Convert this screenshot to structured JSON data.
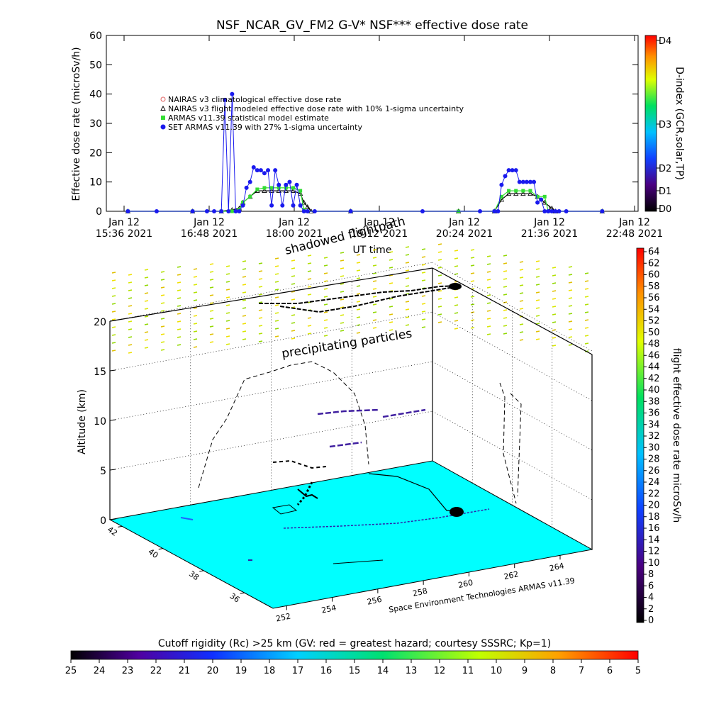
{
  "chart_data": [
    {
      "type": "line",
      "title": "NSF_NCAR_GV_FM2 G-V* NSF*** effective dose rate",
      "xlabel": "UT time",
      "ylabel": "Effective dose rate (microSv/h)",
      "ylim": [
        0,
        60
      ],
      "yticks": [
        0,
        10,
        20,
        30,
        40,
        50,
        60
      ],
      "xticks": [
        {
          "line1": "Jan 12",
          "line2": "15:36 2021"
        },
        {
          "line1": "Jan 12",
          "line2": "16:48 2021"
        },
        {
          "line1": "Jan 12",
          "line2": "18:00 2021"
        },
        {
          "line1": "Jan 12",
          "line2": "19:12 2021"
        },
        {
          "line1": "Jan 12",
          "line2": "20:24 2021"
        },
        {
          "line1": "Jan 12",
          "line2": "21:36 2021"
        },
        {
          "line1": "Jan 12",
          "line2": "22:48 2021"
        }
      ],
      "legend": [
        {
          "label": "NAIRAS v3 climatological effective dose rate",
          "color": "#e06060",
          "marker": "circle"
        },
        {
          "label": "NAIRAS v3 flight modeled effective dose rate with 10% 1-sigma uncertainty",
          "color": "#000000",
          "marker": "triangle"
        },
        {
          "label": "ARMAS v11.39 statistical model estimate",
          "color": "#33dd33",
          "marker": "square"
        },
        {
          "label": "SET ARMAS v11.39 with 27% 1-sigma uncertainty",
          "color": "#1a1aee",
          "marker": "dot"
        }
      ],
      "right_axis": {
        "label": "D-index (GCR,solar,TP)",
        "ticks": [
          "D0",
          "D1",
          "D2",
          "D3",
          "D4"
        ]
      },
      "series": [
        {
          "name": "SET ARMAS v11.39 with 27% 1-sigma uncertainty",
          "x": [
            15.9,
            16.3,
            16.8,
            17.0,
            17.1,
            17.2,
            17.25,
            17.3,
            17.35,
            17.4,
            17.45,
            17.5,
            17.55,
            17.6,
            17.65,
            17.7,
            17.75,
            17.8,
            17.85,
            17.9,
            17.95,
            18.0,
            18.05,
            18.1,
            18.15,
            18.2,
            18.25,
            18.3,
            18.35,
            18.4,
            18.5,
            19.0,
            20.0,
            20.8,
            21.0,
            21.05,
            21.1,
            21.15,
            21.2,
            21.25,
            21.3,
            21.35,
            21.4,
            21.45,
            21.5,
            21.55,
            21.6,
            21.65,
            21.7,
            21.75,
            21.8,
            21.85,
            21.9,
            22.0,
            22.5
          ],
          "y": [
            0,
            0,
            0,
            0,
            0,
            0,
            38,
            0,
            40,
            0,
            0,
            2,
            8,
            10,
            15,
            14,
            14,
            13,
            14,
            2,
            14,
            9,
            2,
            9,
            10,
            2,
            9,
            2,
            0,
            0,
            0,
            0,
            0,
            0,
            0,
            0,
            9,
            12,
            14,
            14,
            14,
            10,
            10,
            10,
            10,
            10,
            3,
            4,
            0,
            0,
            0,
            0,
            0,
            0,
            0
          ]
        },
        {
          "name": "ARMAS v11.39 statistical model estimate",
          "x": [
            15.9,
            16.8,
            17.2,
            17.35,
            17.45,
            17.5,
            17.6,
            17.7,
            17.8,
            17.9,
            18.0,
            18.1,
            18.2,
            18.3,
            18.35,
            18.4,
            19.0,
            20.5,
            21.0,
            21.1,
            21.2,
            21.3,
            21.4,
            21.5,
            21.6,
            21.7,
            21.75,
            22.5
          ],
          "y": [
            0,
            0,
            0,
            0,
            0.5,
            3,
            5,
            7.5,
            8,
            8,
            8,
            8,
            8,
            7,
            0.5,
            0,
            0,
            0,
            0,
            5,
            7,
            7,
            7,
            7,
            5,
            5,
            0,
            0
          ]
        },
        {
          "name": "NAIRAS v3 flight modeled effective dose rate with 10% 1-sigma uncertainty",
          "x": [
            15.9,
            16.8,
            17.2,
            17.35,
            17.45,
            17.5,
            17.6,
            17.7,
            17.8,
            17.9,
            18.0,
            18.1,
            18.2,
            18.3,
            18.35,
            18.4,
            18.45,
            19.0,
            20.5,
            21.0,
            21.1,
            21.2,
            21.3,
            21.4,
            21.5,
            21.6,
            21.7,
            21.8,
            21.85,
            22.5
          ],
          "y": [
            0,
            0,
            0,
            0.5,
            1,
            3,
            5,
            7,
            7,
            7,
            7,
            7,
            7,
            6,
            3,
            1.5,
            0,
            0,
            0,
            0,
            4,
            6,
            6,
            6,
            6,
            5,
            3,
            1,
            0,
            0
          ]
        }
      ]
    },
    {
      "type": "scatter",
      "title": "",
      "zlabel": "Altitude (km)",
      "zticks": [
        0,
        5,
        10,
        15,
        20
      ],
      "lat_ticks": [
        42,
        40,
        38,
        36
      ],
      "lon_ticks": [
        252,
        254,
        256,
        258,
        260,
        262,
        264
      ],
      "annotations": [
        "shadowed flightpath",
        "precipitating particles",
        "Space Environment Technologies ARMAS v11.39"
      ],
      "right_colorbar": {
        "label": "flight effective dose rate microSv/h",
        "ticks": [
          0,
          2,
          4,
          6,
          8,
          10,
          12,
          14,
          16,
          18,
          20,
          22,
          24,
          26,
          28,
          30,
          32,
          34,
          36,
          38,
          40,
          42,
          44,
          46,
          48,
          50,
          52,
          54,
          56,
          58,
          60,
          62,
          64
        ]
      },
      "bottom_colorbar": {
        "label": "Cutoff rigidity (Rc) >25 km (GV: red = greatest hazard; courtesy SSSRC; Kp=1)",
        "ticks": [
          25,
          24,
          23,
          22,
          21,
          20,
          19,
          18,
          17,
          16,
          15,
          14,
          13,
          12,
          11,
          10,
          9,
          8,
          7,
          6,
          5
        ]
      },
      "surface_color": "#00ffff"
    }
  ]
}
